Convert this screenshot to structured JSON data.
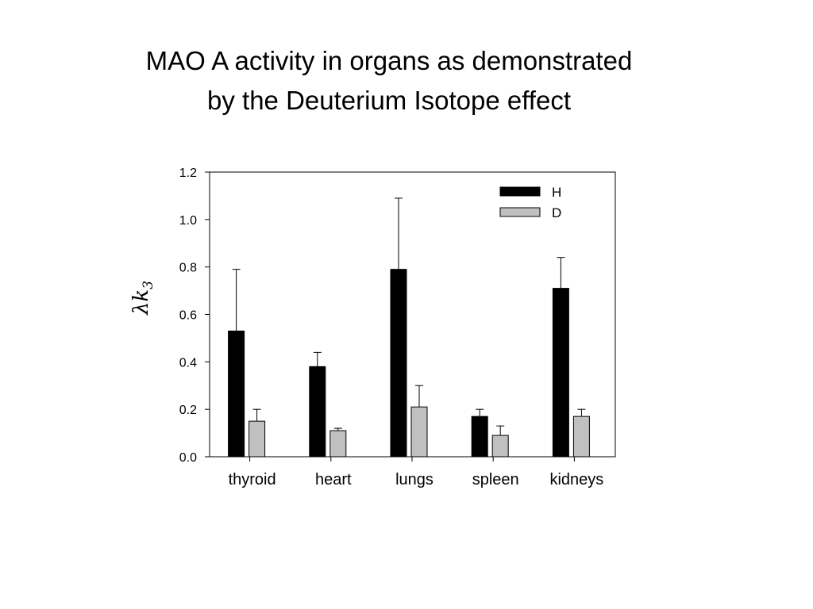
{
  "chart_data": {
    "type": "bar",
    "title_lines": [
      "MAO A activity in organs as demonstrated",
      "by the Deuterium Isotope effect"
    ],
    "categories": [
      "thyroid",
      "heart",
      "lungs",
      "spleen",
      "kidneys"
    ],
    "series": [
      {
        "name": "H",
        "color": "#000000",
        "values": [
          0.53,
          0.38,
          0.79,
          0.17,
          0.71
        ],
        "errors": [
          0.26,
          0.06,
          0.3,
          0.03,
          0.13
        ]
      },
      {
        "name": "D",
        "color": "#c0c0c0",
        "values": [
          0.15,
          0.11,
          0.21,
          0.09,
          0.17
        ],
        "errors": [
          0.05,
          0.01,
          0.09,
          0.04,
          0.03
        ]
      }
    ],
    "ylabel": "λk",
    "ylabel_subscript": "3",
    "ylim": [
      0,
      1.2
    ],
    "yticks": [
      "0.0",
      "0.2",
      "0.4",
      "0.6",
      "0.8",
      "1.0",
      "1.2"
    ],
    "legend": "top-right",
    "grid": false
  }
}
